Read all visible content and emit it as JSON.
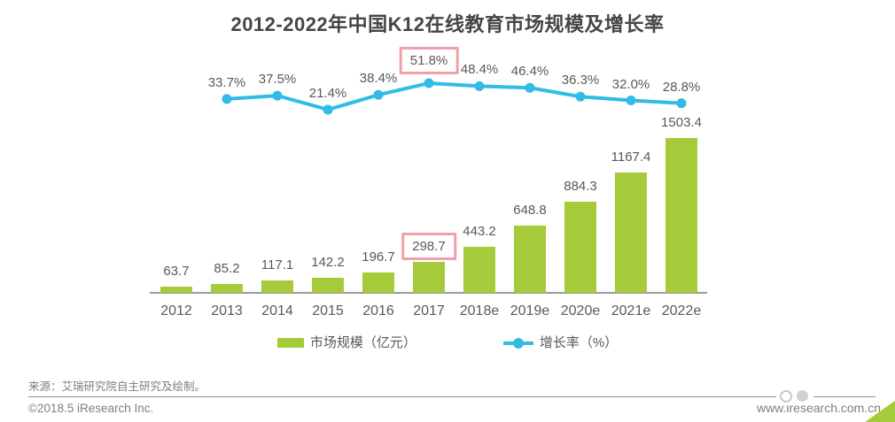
{
  "chart": {
    "title": "2012-2022年中国K12在线教育市场规模及增长率"
  },
  "chart_data": {
    "type": "bar",
    "combo": "bar+line",
    "title": "2012-2022年中国K12在线教育市场规模及增长率",
    "categories": [
      "2012",
      "2013",
      "2014",
      "2015",
      "2016",
      "2017",
      "2018e",
      "2019e",
      "2020e",
      "2021e",
      "2022e"
    ],
    "series": [
      {
        "name": "市场规模（亿元）",
        "type": "bar",
        "unit": "亿元",
        "values": [
          63.7,
          85.2,
          117.1,
          142.2,
          196.7,
          298.7,
          443.2,
          648.8,
          884.3,
          1167.4,
          1503.4
        ],
        "labels": [
          "63.7",
          "85.2",
          "117.1",
          "142.2",
          "196.7",
          "298.7",
          "443.2",
          "648.8",
          "884.3",
          "1167.4",
          "1503.4"
        ],
        "highlighted_label": "298.7"
      },
      {
        "name": "增长率（%）",
        "type": "line",
        "unit": "%",
        "start_category": "2013",
        "values": [
          33.7,
          37.5,
          21.4,
          38.4,
          51.8,
          48.4,
          46.4,
          36.3,
          32.0,
          28.8
        ],
        "labels": [
          "33.7%",
          "37.5%",
          "21.4%",
          "38.4%",
          "51.8%",
          "48.4%",
          "46.4%",
          "36.3%",
          "32.0%",
          "28.8%"
        ],
        "highlighted_label": "51.8%"
      }
    ],
    "legend_position": "bottom",
    "grid": false,
    "y_axis_visible": false
  },
  "legend": {
    "bar_label": "市场规模（亿元）",
    "line_label": "增长率（%）"
  },
  "footer": {
    "source": "来源：艾瑞研究院自主研究及绘制。",
    "copyright": "©2018.5 iResearch Inc.",
    "website": "www.iresearch.com.cn"
  },
  "colors": {
    "bar": "#a6cb3a",
    "line": "#31bce6",
    "highlight_border": "#f0a1a8",
    "text": "#595959",
    "footer_text": "#7e7e7e",
    "title": "#454545"
  }
}
